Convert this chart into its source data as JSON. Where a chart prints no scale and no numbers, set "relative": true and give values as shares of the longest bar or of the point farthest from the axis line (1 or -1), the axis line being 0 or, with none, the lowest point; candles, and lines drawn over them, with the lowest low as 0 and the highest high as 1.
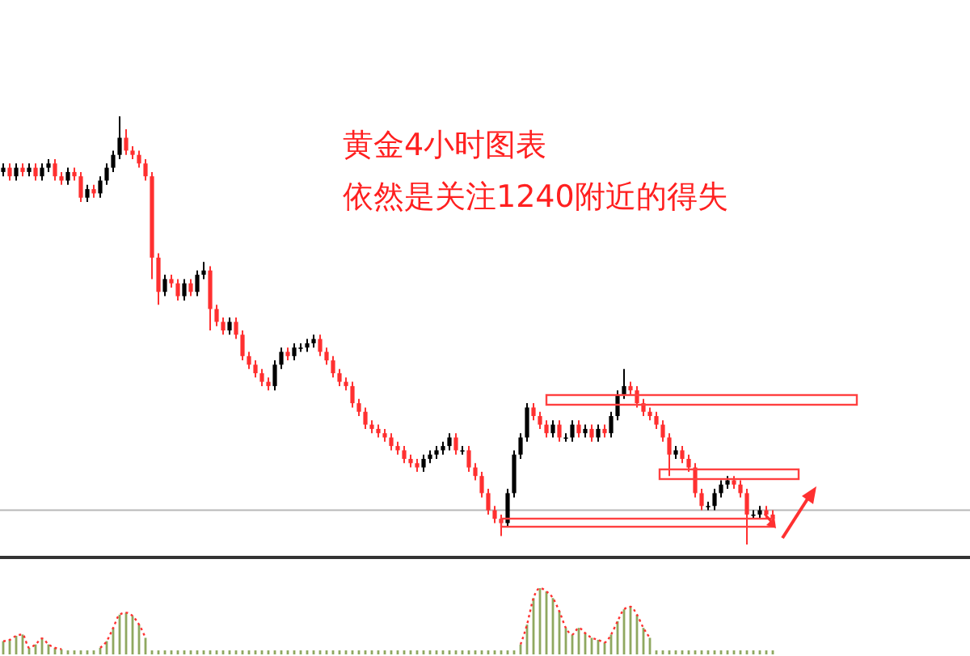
{
  "chart_data": [
    {
      "type": "candlestick",
      "title": "黄金4小时图表",
      "subtitle": "依然是关注1240附近的得失",
      "relative": true,
      "categories": [
        null,
        null,
        null,
        null,
        null,
        null,
        null,
        null,
        null,
        null,
        null,
        null,
        null,
        null,
        null,
        null,
        null,
        null,
        null,
        null,
        null,
        null,
        null,
        null,
        null,
        null,
        null,
        null,
        null,
        null,
        null,
        null,
        null,
        null,
        null,
        null,
        null,
        null,
        null,
        null,
        null,
        null,
        null,
        null,
        null,
        null,
        null,
        null,
        null,
        null,
        null,
        null,
        null,
        null,
        null,
        null,
        null,
        null,
        null,
        null,
        null,
        null,
        null,
        null,
        null,
        null,
        null,
        null,
        null,
        null,
        null,
        null,
        null,
        null,
        null,
        null,
        null,
        null,
        null,
        null,
        null,
        null,
        null,
        null,
        null,
        null,
        null,
        null,
        null,
        null,
        null,
        null,
        null,
        null,
        null,
        null,
        null,
        null,
        null,
        null,
        null,
        null,
        null,
        null,
        null,
        null,
        null,
        null,
        null,
        null,
        null,
        null,
        null,
        null,
        null,
        null,
        null,
        null,
        null,
        null
      ],
      "ohlc": [
        [
          0.87,
          0.89,
          0.86,
          0.88
        ],
        [
          0.88,
          0.89,
          0.85,
          0.86
        ],
        [
          0.86,
          0.89,
          0.85,
          0.88
        ],
        [
          0.88,
          0.89,
          0.86,
          0.87
        ],
        [
          0.87,
          0.89,
          0.86,
          0.88
        ],
        [
          0.88,
          0.89,
          0.85,
          0.86
        ],
        [
          0.86,
          0.89,
          0.85,
          0.88
        ],
        [
          0.88,
          0.9,
          0.87,
          0.89
        ],
        [
          0.89,
          0.9,
          0.85,
          0.86
        ],
        [
          0.86,
          0.87,
          0.84,
          0.85
        ],
        [
          0.85,
          0.88,
          0.84,
          0.87
        ],
        [
          0.87,
          0.88,
          0.85,
          0.86
        ],
        [
          0.86,
          0.87,
          0.8,
          0.81
        ],
        [
          0.81,
          0.84,
          0.8,
          0.83
        ],
        [
          0.83,
          0.84,
          0.81,
          0.82
        ],
        [
          0.82,
          0.86,
          0.81,
          0.85
        ],
        [
          0.85,
          0.89,
          0.84,
          0.88
        ],
        [
          0.88,
          0.92,
          0.87,
          0.91
        ],
        [
          0.91,
          1.0,
          0.9,
          0.95
        ],
        [
          0.95,
          0.97,
          0.91,
          0.92
        ],
        [
          0.92,
          0.93,
          0.9,
          0.91
        ],
        [
          0.91,
          0.92,
          0.88,
          0.89
        ],
        [
          0.89,
          0.9,
          0.85,
          0.86
        ],
        [
          0.86,
          0.87,
          0.62,
          0.67
        ],
        [
          0.67,
          0.68,
          0.56,
          0.59
        ],
        [
          0.59,
          0.63,
          0.58,
          0.62
        ],
        [
          0.62,
          0.63,
          0.6,
          0.61
        ],
        [
          0.61,
          0.62,
          0.57,
          0.58
        ],
        [
          0.58,
          0.62,
          0.57,
          0.61
        ],
        [
          0.61,
          0.62,
          0.58,
          0.59
        ],
        [
          0.59,
          0.64,
          0.58,
          0.63
        ],
        [
          0.63,
          0.66,
          0.62,
          0.64
        ],
        [
          0.64,
          0.65,
          0.5,
          0.55
        ],
        [
          0.55,
          0.56,
          0.51,
          0.52
        ],
        [
          0.52,
          0.53,
          0.49,
          0.5
        ],
        [
          0.5,
          0.53,
          0.49,
          0.52
        ],
        [
          0.52,
          0.53,
          0.48,
          0.49
        ],
        [
          0.49,
          0.5,
          0.43,
          0.44
        ],
        [
          0.44,
          0.45,
          0.41,
          0.42
        ],
        [
          0.42,
          0.43,
          0.39,
          0.4
        ],
        [
          0.4,
          0.41,
          0.37,
          0.38
        ],
        [
          0.38,
          0.39,
          0.36,
          0.37
        ],
        [
          0.37,
          0.43,
          0.36,
          0.42
        ],
        [
          0.42,
          0.46,
          0.41,
          0.45
        ],
        [
          0.45,
          0.46,
          0.43,
          0.44
        ],
        [
          0.44,
          0.47,
          0.43,
          0.46
        ],
        [
          0.46,
          0.47,
          0.45,
          0.46
        ],
        [
          0.46,
          0.48,
          0.45,
          0.47
        ],
        [
          0.47,
          0.49,
          0.46,
          0.48
        ],
        [
          0.48,
          0.49,
          0.44,
          0.45
        ],
        [
          0.45,
          0.46,
          0.42,
          0.43
        ],
        [
          0.43,
          0.44,
          0.39,
          0.4
        ],
        [
          0.4,
          0.41,
          0.37,
          0.38
        ],
        [
          0.38,
          0.39,
          0.36,
          0.37
        ],
        [
          0.37,
          0.38,
          0.32,
          0.33
        ],
        [
          0.33,
          0.34,
          0.3,
          0.31
        ],
        [
          0.31,
          0.32,
          0.27,
          0.28
        ],
        [
          0.28,
          0.29,
          0.26,
          0.27
        ],
        [
          0.27,
          0.28,
          0.25,
          0.26
        ],
        [
          0.26,
          0.27,
          0.24,
          0.25
        ],
        [
          0.25,
          0.26,
          0.22,
          0.23
        ],
        [
          0.23,
          0.24,
          0.21,
          0.22
        ],
        [
          0.22,
          0.23,
          0.19,
          0.2
        ],
        [
          0.2,
          0.21,
          0.18,
          0.19
        ],
        [
          0.19,
          0.2,
          0.17,
          0.18
        ],
        [
          0.18,
          0.21,
          0.17,
          0.2
        ],
        [
          0.2,
          0.22,
          0.19,
          0.21
        ],
        [
          0.21,
          0.23,
          0.2,
          0.22
        ],
        [
          0.22,
          0.24,
          0.21,
          0.23
        ],
        [
          0.23,
          0.26,
          0.22,
          0.25
        ],
        [
          0.25,
          0.26,
          0.21,
          0.22
        ],
        [
          0.22,
          0.23,
          0.21,
          0.22
        ],
        [
          0.22,
          0.23,
          0.17,
          0.18
        ],
        [
          0.18,
          0.19,
          0.15,
          0.16
        ],
        [
          0.16,
          0.17,
          0.11,
          0.12
        ],
        [
          0.12,
          0.13,
          0.07,
          0.08
        ],
        [
          0.08,
          0.09,
          0.05,
          0.06
        ],
        [
          0.06,
          0.07,
          0.02,
          0.05
        ],
        [
          0.05,
          0.13,
          0.04,
          0.12
        ],
        [
          0.12,
          0.22,
          0.11,
          0.21
        ],
        [
          0.21,
          0.26,
          0.2,
          0.25
        ],
        [
          0.25,
          0.33,
          0.24,
          0.32
        ],
        [
          0.32,
          0.33,
          0.29,
          0.3
        ],
        [
          0.3,
          0.31,
          0.27,
          0.28
        ],
        [
          0.28,
          0.29,
          0.25,
          0.26
        ],
        [
          0.26,
          0.29,
          0.25,
          0.28
        ],
        [
          0.28,
          0.29,
          0.24,
          0.25
        ],
        [
          0.25,
          0.26,
          0.24,
          0.25
        ],
        [
          0.25,
          0.29,
          0.24,
          0.28
        ],
        [
          0.28,
          0.29,
          0.25,
          0.26
        ],
        [
          0.26,
          0.28,
          0.25,
          0.27
        ],
        [
          0.27,
          0.28,
          0.24,
          0.25
        ],
        [
          0.25,
          0.28,
          0.24,
          0.27
        ],
        [
          0.27,
          0.28,
          0.25,
          0.26
        ],
        [
          0.26,
          0.31,
          0.25,
          0.3
        ],
        [
          0.3,
          0.36,
          0.29,
          0.35
        ],
        [
          0.35,
          0.41,
          0.34,
          0.37
        ],
        [
          0.37,
          0.38,
          0.35,
          0.36
        ],
        [
          0.36,
          0.37,
          0.32,
          0.33
        ],
        [
          0.33,
          0.34,
          0.3,
          0.31
        ],
        [
          0.31,
          0.32,
          0.29,
          0.3
        ],
        [
          0.3,
          0.31,
          0.27,
          0.28
        ],
        [
          0.28,
          0.29,
          0.24,
          0.25
        ],
        [
          0.25,
          0.26,
          0.16,
          0.21
        ],
        [
          0.21,
          0.23,
          0.2,
          0.22
        ],
        [
          0.22,
          0.23,
          0.19,
          0.2
        ],
        [
          0.2,
          0.21,
          0.17,
          0.18
        ],
        [
          0.18,
          0.19,
          0.11,
          0.12
        ],
        [
          0.12,
          0.13,
          0.08,
          0.09
        ],
        [
          0.09,
          0.1,
          0.08,
          0.09
        ],
        [
          0.09,
          0.13,
          0.08,
          0.12
        ],
        [
          0.12,
          0.15,
          0.11,
          0.14
        ],
        [
          0.14,
          0.16,
          0.13,
          0.15
        ],
        [
          0.15,
          0.16,
          0.13,
          0.14
        ],
        [
          0.14,
          0.15,
          0.11,
          0.12
        ],
        [
          0.12,
          0.13,
          0,
          0.07
        ],
        [
          0.07,
          0.08,
          0.06,
          0.07
        ],
        [
          0.07,
          0.09,
          0.06,
          0.08
        ],
        [
          0.08,
          0.09,
          0.06,
          0.07
        ],
        [
          0.07,
          0.08,
          0.05,
          0.06
        ]
      ],
      "colors": [
        "#000000",
        "#ff3030",
        "#000000",
        "#ff3030",
        "#000000",
        "#ff3030",
        "#000000",
        "#000000",
        "#ff3030",
        "#ff3030",
        "#000000",
        "#ff3030",
        "#ff3030",
        "#000000",
        "#ff3030",
        "#000000",
        "#000000",
        "#000000",
        "#000000",
        "#ff3030",
        "#ff3030",
        "#ff3030",
        "#ff3030",
        "#ff3030",
        "#ff3030",
        "#000000",
        "#ff3030",
        "#ff3030",
        "#000000",
        "#ff3030",
        "#000000",
        "#000000",
        "#ff3030",
        "#ff3030",
        "#ff3030",
        "#000000",
        "#ff3030",
        "#ff3030",
        "#ff3030",
        "#ff3030",
        "#ff3030",
        "#ff3030",
        "#000000",
        "#000000",
        "#ff3030",
        "#000000",
        "#000000",
        "#000000",
        "#000000",
        "#ff3030",
        "#ff3030",
        "#ff3030",
        "#ff3030",
        "#ff3030",
        "#ff3030",
        "#ff3030",
        "#ff3030",
        "#ff3030",
        "#ff3030",
        "#ff3030",
        "#ff3030",
        "#ff3030",
        "#ff3030",
        "#ff3030",
        "#ff3030",
        "#000000",
        "#000000",
        "#000000",
        "#000000",
        "#000000",
        "#ff3030",
        "#000000",
        "#ff3030",
        "#ff3030",
        "#ff3030",
        "#ff3030",
        "#ff3030",
        "#ff3030",
        "#000000",
        "#000000",
        "#000000",
        "#000000",
        "#ff3030",
        "#ff3030",
        "#ff3030",
        "#000000",
        "#ff3030",
        "#000000",
        "#000000",
        "#ff3030",
        "#000000",
        "#ff3030",
        "#000000",
        "#ff3030",
        "#000000",
        "#000000",
        "#000000",
        "#ff3030",
        "#ff3030",
        "#ff3030",
        "#ff3030",
        "#ff3030",
        "#ff3030",
        "#ff3030",
        "#000000",
        "#ff3030",
        "#ff3030",
        "#ff3030",
        "#ff3030",
        "#000000",
        "#000000",
        "#000000",
        "#000000",
        "#ff3030",
        "#ff3030",
        "#ff3030",
        "#000000",
        "#000000",
        "#ff3030",
        "#ff3030"
      ],
      "ref_lines": [
        {
          "axis": "y",
          "value": 0.08,
          "color": "#b8b8b8"
        }
      ]
    },
    {
      "type": "bar",
      "relative": true,
      "categories": [
        null,
        null,
        null,
        null,
        null,
        null,
        null,
        null,
        null,
        null,
        null,
        null,
        null,
        null,
        null,
        null,
        null,
        null,
        null,
        null,
        null,
        null,
        null,
        null,
        null,
        null,
        null,
        null,
        null,
        null,
        null,
        null,
        null,
        null,
        null,
        null,
        null,
        null,
        null,
        null,
        null,
        null,
        null,
        null,
        null,
        null,
        null,
        null,
        null,
        null,
        null,
        null,
        null,
        null,
        null,
        null,
        null,
        null,
        null,
        null,
        null,
        null,
        null,
        null,
        null,
        null,
        null,
        null,
        null,
        null,
        null,
        null,
        null,
        null,
        null,
        null,
        null,
        null,
        null,
        null,
        null,
        null,
        null,
        null,
        null,
        null,
        null,
        null,
        null,
        null,
        null,
        null,
        null,
        null,
        null,
        null,
        null,
        null,
        null,
        null,
        null,
        null,
        null,
        null,
        null,
        null,
        null,
        null,
        null,
        null,
        null,
        null,
        null,
        null,
        null,
        null,
        null,
        null,
        null,
        null
      ],
      "series": [
        {
          "type": "bar",
          "color": "#8fa860",
          "values": [
            0.2,
            0.22,
            0.28,
            0.3,
            0.1,
            0.15,
            0.24,
            0.15,
            0.1,
            0.08,
            0.06,
            0.06,
            0.06,
            0.06,
            0.06,
            0.1,
            0.2,
            0.4,
            0.6,
            0.63,
            0.58,
            0.45,
            0.25,
            0.06,
            0.06,
            0.06,
            0.06,
            0.06,
            0.06,
            0.06,
            0.06,
            0.06,
            0.06,
            0.06,
            0.06,
            0.06,
            0.06,
            0.06,
            0.06,
            0.06,
            0.06,
            0.06,
            0.06,
            0.06,
            0.06,
            0.06,
            0.06,
            0.06,
            0.06,
            0.06,
            0.06,
            0.06,
            0.06,
            0.06,
            0.06,
            0.06,
            0.06,
            0.06,
            0.06,
            0.06,
            0.06,
            0.06,
            0.06,
            0.06,
            0.06,
            0.06,
            0.06,
            0.06,
            0.06,
            0.06,
            0.06,
            0.06,
            0.06,
            0.06,
            0.06,
            0.06,
            0.06,
            0.06,
            0.06,
            0.06,
            0.15,
            0.45,
            0.85,
            1.0,
            0.95,
            0.85,
            0.65,
            0.4,
            0.3,
            0.4,
            0.32,
            0.25,
            0.22,
            0.18,
            0.3,
            0.5,
            0.68,
            0.72,
            0.6,
            0.4,
            0.25,
            0.06,
            0.06,
            0.06,
            0.06,
            0.06,
            0.06,
            0.06,
            0.06,
            0.06,
            0.06,
            0.06,
            0.06,
            0.06,
            0.06,
            0.06,
            0.06,
            0.06,
            0.06,
            0.06
          ]
        },
        {
          "type": "line",
          "color": "#ff3030",
          "line_style": "dotted",
          "marker": "none",
          "values": [
            0.2,
            0.22,
            0.28,
            0.3,
            0.1,
            0.15,
            0.24,
            0.15,
            0.1,
            0.08,
            null,
            null,
            null,
            null,
            null,
            0.1,
            0.2,
            0.4,
            0.6,
            0.63,
            0.58,
            0.45,
            0.25,
            null,
            null,
            null,
            null,
            null,
            null,
            null,
            null,
            null,
            null,
            null,
            null,
            null,
            null,
            null,
            null,
            null,
            null,
            null,
            null,
            null,
            null,
            null,
            null,
            null,
            null,
            null,
            null,
            null,
            null,
            null,
            null,
            null,
            null,
            null,
            null,
            null,
            null,
            null,
            null,
            null,
            null,
            null,
            null,
            null,
            null,
            null,
            null,
            null,
            null,
            null,
            null,
            null,
            null,
            null,
            null,
            null,
            0.15,
            0.45,
            0.85,
            1.0,
            0.95,
            0.85,
            0.65,
            0.4,
            0.3,
            0.4,
            0.32,
            0.25,
            0.22,
            0.18,
            0.3,
            0.5,
            0.68,
            0.72,
            0.6,
            0.4,
            0.25,
            null,
            null,
            null,
            null,
            null,
            null,
            null,
            null,
            null,
            null,
            null,
            null,
            null,
            null,
            null,
            null,
            null,
            null,
            null
          ]
        }
      ]
    }
  ]
}
